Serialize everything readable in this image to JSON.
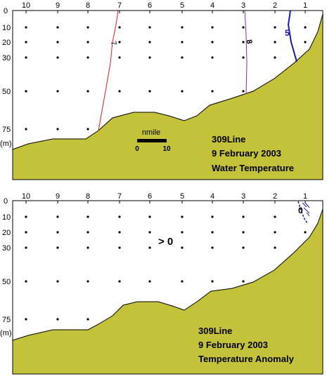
{
  "panels": [
    {
      "station_labels": [
        "10",
        "9",
        "8",
        "7",
        "6",
        "5",
        "4",
        "3",
        "2",
        "1"
      ],
      "depth_labels": [
        "0",
        "10",
        "20",
        "30",
        "50",
        "75",
        "(m)"
      ],
      "contour_labels": [
        "7",
        "8",
        "5"
      ],
      "scale_bar": {
        "unit": "nmile",
        "start": "0",
        "end": "10"
      },
      "caption": {
        "line1": "309Line",
        "line2": "9 February 2003",
        "line3": "Water Temperature"
      },
      "colors": {
        "seabed": "#c4c23a",
        "contour_7": "#e02020",
        "contour_8": "#8a2bb0",
        "contour_5": "#1a1aa8"
      }
    },
    {
      "station_labels": [
        "10",
        "9",
        "8",
        "7",
        "6",
        "5",
        "4",
        "3",
        "2",
        "1"
      ],
      "depth_labels": [
        "0",
        "10",
        "20",
        "30",
        "50",
        "75",
        "(m)"
      ],
      "region_label": "> 0",
      "contour_labels": [
        "0"
      ],
      "caption": {
        "line1": "309Line",
        "line2": "9 February 2003",
        "line3": "Temperature Anomaly"
      },
      "colors": {
        "seabed": "#c4c23a",
        "contour_0": "#1a1aa8"
      }
    }
  ]
}
